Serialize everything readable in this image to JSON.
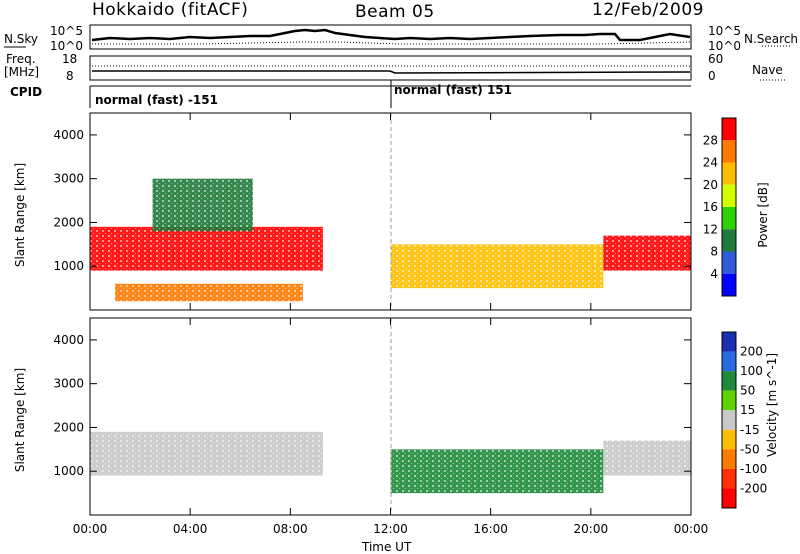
{
  "header": {
    "station": "Hokkaido (fitACF)",
    "beam": "Beam 05",
    "date": "12/Feb/2009"
  },
  "strip": {
    "nsky_label": "N.Sky",
    "nsky_ticks": [
      "10^5",
      "10^0"
    ],
    "nsearch_label": "N.Search",
    "nsearch_ticks": [
      "10^5",
      "10^0"
    ],
    "freq_label_1": "Freq.",
    "freq_label_2": "[MHz]",
    "freq_ticks": [
      "18",
      "8"
    ],
    "nave_label": "Nave",
    "nave_ticks": [
      "60",
      "0"
    ],
    "cpid_label": "CPID",
    "cpid_left": "normal (fast) -151",
    "cpid_right": "normal (fast) 151"
  },
  "chart_data": [
    {
      "type": "heatmap",
      "title": "",
      "ylabel": "Slant Range [km]",
      "xlabel": "Time UT",
      "x_ticks": [
        "00:00",
        "04:00",
        "08:00",
        "12:00",
        "16:00",
        "20:00",
        "00:00"
      ],
      "y_ticks": [
        "1000",
        "2000",
        "3000",
        "4000"
      ],
      "colorbar_label": "Power [dB]",
      "colorbar_ticks": [
        "28",
        "24",
        "20",
        "16",
        "12",
        "8",
        "4"
      ],
      "colors": [
        "#ff0000",
        "#ff7a00",
        "#ffbf00",
        "#d4ff00",
        "#2fd000",
        "#1e7a3a",
        "#2f5ad8",
        "#0000ff"
      ],
      "legend": "right",
      "regions": [
        {
          "t": [
            0.0,
            9.3
          ],
          "r": [
            900,
            1900
          ],
          "level": 26
        },
        {
          "t": [
            1.0,
            8.5
          ],
          "r": [
            200,
            600
          ],
          "level": 22
        },
        {
          "t": [
            2.5,
            6.5
          ],
          "r": [
            1800,
            3000
          ],
          "level": 8
        },
        {
          "t": [
            12.0,
            20.5
          ],
          "r": [
            500,
            1500
          ],
          "level": 20
        },
        {
          "t": [
            20.5,
            24.0
          ],
          "r": [
            900,
            1700
          ],
          "level": 26
        }
      ]
    },
    {
      "type": "heatmap",
      "title": "",
      "ylabel": "Slant Range [km]",
      "xlabel": "Time UT",
      "x_ticks": [
        "00:00",
        "04:00",
        "08:00",
        "12:00",
        "16:00",
        "20:00",
        "00:00"
      ],
      "y_ticks": [
        "1000",
        "2000",
        "3000",
        "4000"
      ],
      "colorbar_label": "Velocity [m s^-1]",
      "colorbar_ticks": [
        "200",
        "100",
        "50",
        "15",
        "-15",
        "-50",
        "-100",
        "-200"
      ],
      "colors": [
        "#1a2fb0",
        "#2a6ae0",
        "#1e8a3a",
        "#60d000",
        "#c8c8c8",
        "#ffbf00",
        "#ff7a00",
        "#ff3000",
        "#ff0000"
      ],
      "legend": "right",
      "regions": [
        {
          "t": [
            0.0,
            9.3
          ],
          "r": [
            900,
            1900
          ],
          "velocity": 0
        },
        {
          "t": [
            12.0,
            20.5
          ],
          "r": [
            500,
            1500
          ],
          "velocity": 60
        },
        {
          "t": [
            20.5,
            24.0
          ],
          "r": [
            900,
            1700
          ],
          "velocity": 0
        }
      ]
    }
  ]
}
